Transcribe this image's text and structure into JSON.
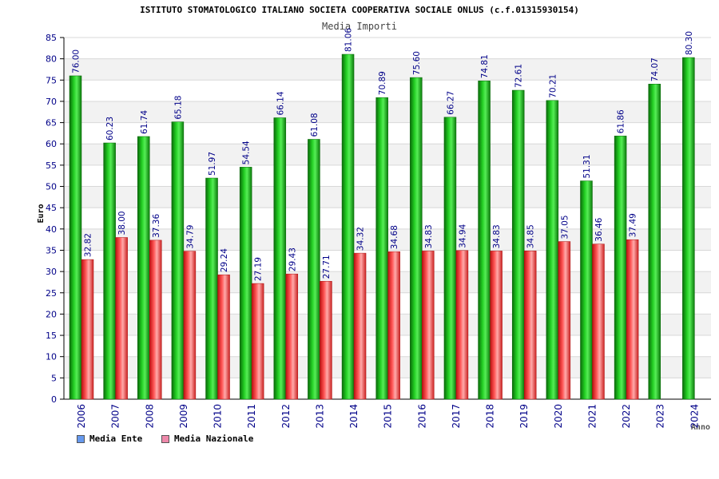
{
  "title": "ISTITUTO STOMATOLOGICO ITALIANO SOCIETA COOPERATIVA SOCIALE ONLUS (c.f.01315930154)",
  "subtitle": "Media Importi",
  "colors": {
    "ente": "#11aa11",
    "nazionale": "#ee3333",
    "legend_ente": "#6699ee",
    "legend_nazionale": "#ee88aa",
    "axis_text": "#000088"
  },
  "legend": {
    "ente": "Media Ente",
    "nazionale": "Media Nazionale"
  },
  "chart_data": {
    "type": "bar",
    "title": "Media Importi",
    "xlabel": "Anno",
    "ylabel": "Euro",
    "ylim": [
      0,
      85
    ],
    "ytick_step": 5,
    "grid": true,
    "categories": [
      "2006",
      "2007",
      "2008",
      "2009",
      "2010",
      "2011",
      "2012",
      "2013",
      "2014",
      "2015",
      "2016",
      "2017",
      "2018",
      "2019",
      "2020",
      "2021",
      "2022",
      "2023",
      "2024"
    ],
    "series": [
      {
        "name": "Media Ente",
        "values": [
          76.0,
          60.23,
          61.74,
          65.18,
          51.97,
          54.54,
          66.14,
          61.08,
          81.06,
          70.89,
          75.6,
          66.27,
          74.81,
          72.61,
          70.21,
          51.31,
          61.86,
          74.07,
          80.3
        ],
        "labels": [
          "76.00",
          "60.23",
          "61.74",
          "65.18",
          "51.97",
          "54.54",
          "66.14",
          "61.08",
          "81.06",
          "70.89",
          "75.60",
          "66.27",
          "74.81",
          "72.61",
          "70.21",
          "51.31",
          "61.86",
          "74.07",
          "80.30"
        ]
      },
      {
        "name": "Media Nazionale",
        "values": [
          32.82,
          38.0,
          37.36,
          34.79,
          29.24,
          27.19,
          29.43,
          27.71,
          34.32,
          34.68,
          34.83,
          34.94,
          34.83,
          34.85,
          37.05,
          36.46,
          37.49,
          null,
          null
        ],
        "labels": [
          "32.82",
          "38.00",
          "37.36",
          "34.79",
          "29.24",
          "27.19",
          "29.43",
          "27.71",
          "34.32",
          "34.68",
          "34.83",
          "34.94",
          "34.83",
          "34.85",
          "37.05",
          "36.46",
          "37.49",
          null,
          null
        ]
      }
    ]
  }
}
